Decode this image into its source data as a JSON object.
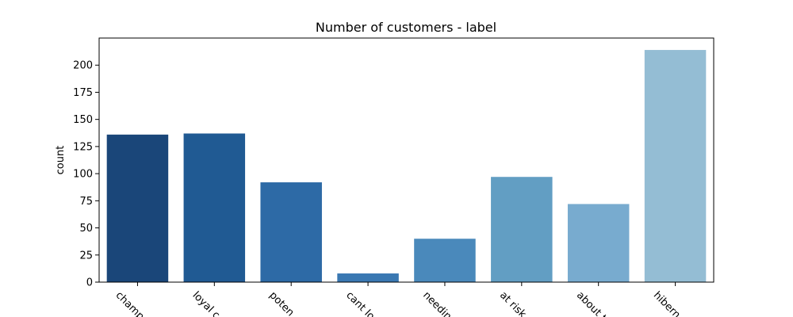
{
  "chart_data": {
    "type": "bar",
    "title": "Number of customers - label",
    "xlabel": "",
    "ylabel": "count",
    "categories": [
      "champions",
      "loyal customers",
      "potential loyalists",
      "cant lose them",
      "needing attention",
      "at risk",
      "about to sleep",
      "hibernating"
    ],
    "categories_visible": [
      "champ",
      "loyal c",
      "poten",
      "cant lo",
      "needin",
      "at risk",
      "about t",
      "hibern"
    ],
    "values": [
      136,
      137,
      92,
      8,
      40,
      97,
      72,
      214
    ],
    "colors": [
      "#1a4679",
      "#205a93",
      "#2d6aa6",
      "#3a78b2",
      "#4a89bb",
      "#629ec3",
      "#78abcf",
      "#94bdd4"
    ],
    "ylim": [
      0,
      225
    ],
    "yticks": [
      0,
      25,
      50,
      75,
      100,
      125,
      150,
      175,
      200
    ],
    "grid": false,
    "legend": "none"
  }
}
